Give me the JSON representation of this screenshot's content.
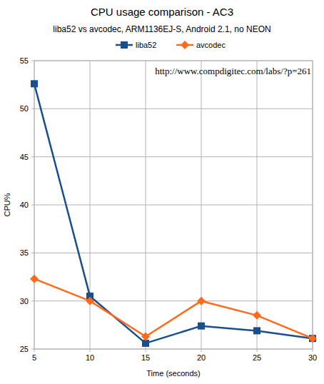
{
  "chart_data": {
    "type": "line",
    "title": "CPU usage comparison - AC3",
    "subtitle": "liba52 vs avcodec, ARM1136EJ-S, Android 2.1, no NEON",
    "annotation": "http://www.compdigitec.com/labs/?p=261",
    "xlabel": "Time (seconds)",
    "ylabel": "CPU%",
    "x": [
      5,
      10,
      15,
      20,
      25,
      30
    ],
    "xlim": [
      5,
      30
    ],
    "xticks": [
      5,
      10,
      15,
      20,
      25,
      30
    ],
    "ylim": [
      25,
      55
    ],
    "yticks": [
      25,
      30,
      35,
      40,
      45,
      50,
      55
    ],
    "grid": true,
    "legend": "top",
    "series": [
      {
        "name": "liba52",
        "color": "#1a4f8b",
        "marker": "square",
        "values": [
          52.6,
          30.5,
          25.6,
          27.4,
          26.9,
          26.1
        ]
      },
      {
        "name": "avcodec",
        "color": "#ff6b1a",
        "marker": "diamond",
        "values": [
          32.3,
          30.0,
          26.3,
          30.0,
          28.5,
          26.1
        ]
      }
    ]
  }
}
